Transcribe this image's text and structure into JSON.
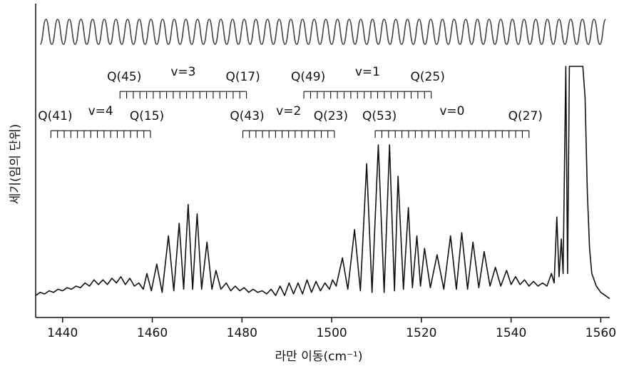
{
  "chart_data": {
    "type": "line",
    "xlabel": "라만 이동(cm⁻¹)",
    "ylabel": "세기(임의 단위)",
    "xlim": [
      1434,
      1562
    ],
    "xticks": [
      1440,
      1460,
      1480,
      1500,
      1520,
      1540,
      1560
    ],
    "ylim": [
      0,
      100
    ],
    "series": [
      {
        "color": "#111111",
        "x": [
          1434,
          1435,
          1436,
          1437,
          1438,
          1439,
          1440,
          1441,
          1442,
          1443,
          1444,
          1445,
          1446,
          1447,
          1448,
          1449,
          1450,
          1451,
          1452,
          1453,
          1454,
          1455,
          1456,
          1457,
          1458,
          1458.8,
          1459.8,
          1461,
          1462.2,
          1463.6,
          1464.8,
          1466,
          1467,
          1468,
          1469,
          1470,
          1471,
          1472.2,
          1473.3,
          1474.2,
          1475.3,
          1476.5,
          1477.5,
          1478.5,
          1479.5,
          1480.5,
          1481.5,
          1482.5,
          1483.5,
          1484.5,
          1485.5,
          1486.5,
          1487.5,
          1488.5,
          1489.5,
          1490.5,
          1491.5,
          1492.5,
          1493.5,
          1494.5,
          1495.5,
          1496.5,
          1497.5,
          1498.5,
          1499.5,
          1500.2,
          1501,
          1502.4,
          1503.6,
          1505.1,
          1506.4,
          1507.8,
          1509,
          1510.4,
          1511.7,
          1512.9,
          1514,
          1514.8,
          1516,
          1517.1,
          1518,
          1519,
          1519.8,
          1520.7,
          1522,
          1523.5,
          1525,
          1526.5,
          1527.8,
          1529,
          1530.3,
          1531.5,
          1532.8,
          1534,
          1535.3,
          1536.5,
          1537.7,
          1539,
          1540,
          1541,
          1542,
          1543,
          1544,
          1545,
          1546,
          1547,
          1548,
          1549,
          1549.6,
          1550.2,
          1550.7,
          1551.2,
          1551.6,
          1552.2,
          1552.6,
          1553,
          1553.5,
          1554,
          1555,
          1556,
          1556.5,
          1557,
          1557.5,
          1558,
          1559,
          1560,
          1561,
          1562
        ],
        "values": [
          7,
          8,
          7.5,
          8.5,
          8,
          9,
          8.5,
          9.5,
          9,
          10,
          9.5,
          11,
          10,
          12,
          10.5,
          12,
          10.5,
          12.5,
          11,
          13,
          10.5,
          12.5,
          10,
          11,
          9,
          14,
          8.5,
          17,
          8,
          26,
          8.5,
          30,
          9,
          36,
          9,
          33,
          9,
          24,
          9,
          15,
          9,
          11,
          8.5,
          10,
          8.5,
          9.5,
          8,
          9,
          8,
          8.5,
          7.5,
          9,
          7,
          10,
          7,
          11,
          7.5,
          11,
          7.5,
          12,
          8,
          11.5,
          8.5,
          11,
          9,
          12,
          10,
          19,
          9,
          28,
          8.5,
          49,
          8,
          55,
          8,
          55,
          8.5,
          45,
          9,
          35,
          9.5,
          26,
          10,
          22,
          9.5,
          20,
          9,
          26,
          9,
          27,
          9,
          24,
          9.5,
          21,
          10,
          16,
          10,
          15,
          10.5,
          13,
          10.5,
          12,
          10,
          11.5,
          10,
          11,
          10,
          14,
          11,
          32,
          13,
          25,
          14,
          80,
          14,
          80,
          80,
          80,
          80,
          80,
          70,
          40,
          22,
          14,
          10,
          8,
          7,
          6
        ]
      },
      {
        "color": "#444444",
        "x": [
          1435,
          1436.3,
          1437.6,
          1438.9,
          1440.2,
          1441.5,
          1442.8,
          1444.1,
          1445.4,
          1446.7,
          1448,
          1449.3,
          1450.6,
          1451.9,
          1453.2,
          1454.5,
          1455.8,
          1457.1,
          1458.4,
          1459.7,
          1461,
          1462.3,
          1463.6,
          1464.9,
          1466.2,
          1467.5,
          1468.8,
          1470.1,
          1471.4,
          1472.7,
          1474,
          1475.3,
          1476.6,
          1477.9,
          1479.2,
          1480.5,
          1481.8,
          1483.1,
          1484.4,
          1485.7,
          1487,
          1488.3,
          1489.6,
          1490.9,
          1492.2,
          1493.5,
          1494.8,
          1496.1,
          1497.4,
          1498.7,
          1500,
          1501.3,
          1502.6,
          1503.9,
          1505.2,
          1506.5,
          1507.8,
          1509.1,
          1510.4,
          1511.7,
          1513,
          1514.3,
          1515.6,
          1516.9,
          1518.2,
          1519.5,
          1520.8,
          1522.1,
          1523.4,
          1524.7,
          1526,
          1527.3,
          1528.6,
          1529.9,
          1531.2,
          1532.5,
          1533.8,
          1535.1,
          1536.4,
          1537.7,
          1539,
          1540.3,
          1541.6,
          1542.9,
          1544.2,
          1545.5,
          1546.8,
          1548.1,
          1549.4,
          1550.7,
          1552,
          1553.3,
          1554.6,
          1555.9,
          1557.2,
          1558.5,
          1559.8,
          1561.1
        ],
        "values": [
          87,
          95,
          87,
          95,
          87,
          95,
          87,
          95,
          87,
          95,
          87,
          95,
          87,
          95,
          87,
          95,
          87,
          95,
          87,
          95,
          87,
          95,
          87,
          95,
          87,
          95,
          87,
          95,
          87,
          95,
          87,
          95,
          87,
          95,
          87,
          95,
          87,
          95,
          87,
          95,
          87,
          95,
          87,
          95,
          87,
          95,
          87,
          95,
          87,
          95,
          87,
          95,
          87,
          95,
          87,
          95,
          87,
          95,
          87,
          95,
          87,
          95,
          87,
          95,
          87,
          95,
          87,
          95,
          87,
          95,
          87,
          95,
          87,
          95,
          87,
          95,
          87,
          95,
          87,
          95,
          87,
          95,
          87,
          95,
          87,
          95,
          87,
          95,
          87,
          95,
          87,
          95,
          87,
          95,
          87,
          95,
          87,
          95
        ]
      }
    ],
    "annotations": [
      {
        "label": "v=3",
        "left": "Q(45)",
        "right": "Q(17)",
        "x": [
          1452.8,
          1481.0
        ],
        "y": 72
      },
      {
        "label": "v=1",
        "left": "Q(49)",
        "right": "Q(25)",
        "x": [
          1493.8,
          1522.2
        ],
        "y": 72
      },
      {
        "label": "v=4",
        "left": "Q(41)",
        "right": "Q(15)",
        "x": [
          1437.4,
          1459.6
        ],
        "y": 59.5
      },
      {
        "label": "v=2",
        "left": "Q(43)",
        "right": "Q(23)",
        "x": [
          1480.2,
          1500.6
        ],
        "y": 59.5
      },
      {
        "label": "v=0",
        "left": "Q(53)",
        "right": "Q(27)",
        "x": [
          1509.7,
          1544.0
        ],
        "y": 59.5
      }
    ]
  }
}
